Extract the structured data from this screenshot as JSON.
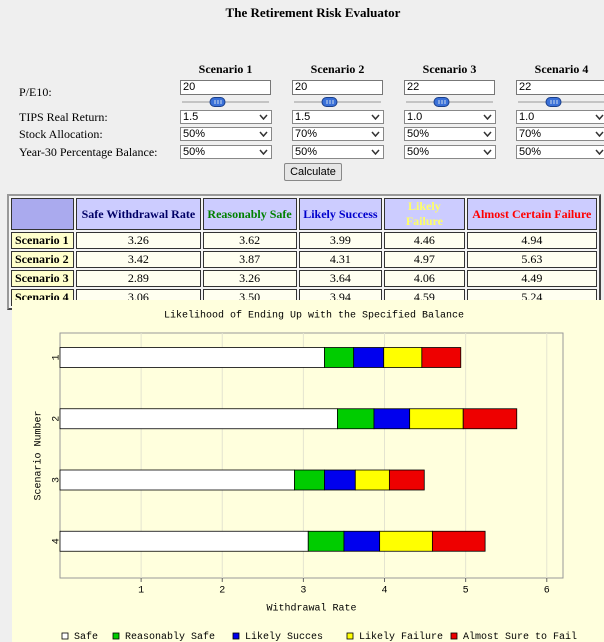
{
  "header": {
    "title": "The Retirement Risk Evaluator"
  },
  "form": {
    "scenarios": [
      "Scenario 1",
      "Scenario 2",
      "Scenario 3",
      "Scenario 4"
    ],
    "pe10": {
      "label": "P/E10:",
      "values": [
        "20",
        "20",
        "22",
        "22"
      ]
    },
    "tips": {
      "label": "TIPS Real Return:",
      "values": [
        "1.5",
        "1.5",
        "1.0",
        "1.0"
      ]
    },
    "stock": {
      "label": "Stock Allocation:",
      "values": [
        "50%",
        "70%",
        "50%",
        "70%"
      ]
    },
    "balance": {
      "label": "Year-30 Percentage Balance:",
      "values": [
        "50%",
        "50%",
        "50%",
        "50%"
      ]
    },
    "button": "Calculate"
  },
  "table": {
    "headers": [
      "Safe Withdrawal Rate",
      "Reasonably Safe",
      "Likely Success",
      "Likely Failure",
      "Almost Certain Failure"
    ],
    "header_colors": [
      "#000066",
      "#008000",
      "#0000cc",
      "#ffff66",
      "#ff0000"
    ],
    "rows": [
      [
        "Scenario 1",
        "3.26",
        "3.62",
        "3.99",
        "4.46",
        "4.94"
      ],
      [
        "Scenario 2",
        "3.42",
        "3.87",
        "4.31",
        "4.97",
        "5.63"
      ],
      [
        "Scenario 3",
        "2.89",
        "3.26",
        "3.64",
        "4.06",
        "4.49"
      ],
      [
        "Scenario 4",
        "3.06",
        "3.50",
        "3.94",
        "4.59",
        "5.24"
      ]
    ]
  },
  "chart_data": {
    "type": "stacked_barh",
    "title": "Likelihood of Ending Up with the Specified Balance",
    "x_label": "Withdrawal Rate",
    "y_label": "Scenario Number",
    "categories": [
      "1",
      "2",
      "3",
      "4"
    ],
    "series": [
      {
        "name": "Safe",
        "color": "#ffffff",
        "values": [
          3.26,
          3.42,
          2.89,
          3.06
        ]
      },
      {
        "name": "Reasonably Safe",
        "color": "#00cc00",
        "values": [
          0.36,
          0.45,
          0.37,
          0.44
        ]
      },
      {
        "name": "Likely Succes",
        "color": "#0000ee",
        "values": [
          0.37,
          0.44,
          0.38,
          0.44
        ]
      },
      {
        "name": "Likely Failure",
        "color": "#ffff00",
        "values": [
          0.47,
          0.66,
          0.42,
          0.65
        ]
      },
      {
        "name": "Almost Sure to Fail",
        "color": "#ee0000",
        "values": [
          0.48,
          0.66,
          0.43,
          0.65
        ]
      }
    ],
    "xlim": [
      0,
      6.2
    ],
    "xticks": [
      1,
      2,
      3,
      4,
      5,
      6
    ],
    "grid": true,
    "legend": "bottom"
  }
}
